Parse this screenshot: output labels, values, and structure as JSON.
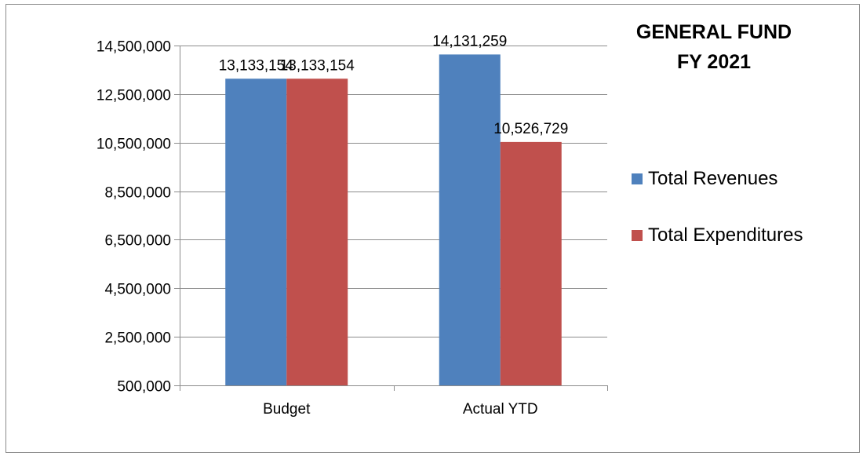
{
  "chart_data": {
    "type": "bar",
    "title_lines": [
      "GENERAL FUND",
      "FY 2021"
    ],
    "categories": [
      "Budget",
      "Actual YTD"
    ],
    "series": [
      {
        "name": "Total Revenues",
        "color": "#4f81bd",
        "values": [
          13133154,
          14131259
        ],
        "labels": [
          "13,133,154",
          "14,131,259"
        ]
      },
      {
        "name": "Total Expenditures",
        "color": "#c0504d",
        "values": [
          13133154,
          10526729
        ],
        "labels": [
          "13,133,154",
          "10,526,729"
        ]
      }
    ],
    "ylim": [
      500000,
      14500000
    ],
    "yticks": [
      500000,
      2500000,
      4500000,
      6500000,
      8500000,
      10500000,
      12500000,
      14500000
    ],
    "ytick_labels": [
      "500,000",
      "2,500,000",
      "4,500,000",
      "6,500,000",
      "8,500,000",
      "10,500,000",
      "12,500,000",
      "14,500,000"
    ],
    "grid": "horizontal",
    "legend_position": "right"
  }
}
